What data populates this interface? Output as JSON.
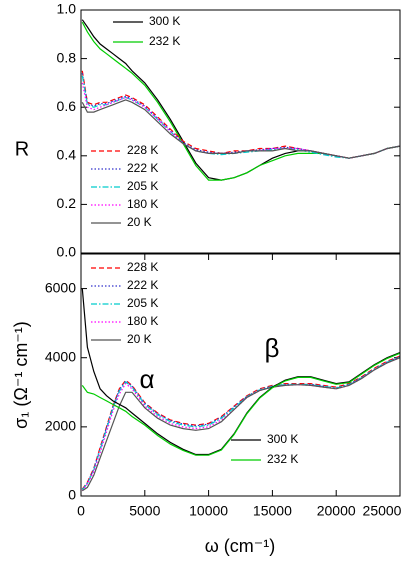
{
  "chart_data": [
    {
      "type": "line",
      "ylabel": "R",
      "xlim": [
        0,
        25000
      ],
      "ylim": [
        0,
        1
      ],
      "yticks": [
        {
          "value": 0,
          "label": "0.0"
        },
        0.2,
        0.4,
        0.6,
        0.8,
        {
          "value": 1,
          "label": "1.0"
        }
      ],
      "x": [
        100,
        500,
        1000,
        1500,
        2000,
        2500,
        3000,
        3500,
        4000,
        5000,
        6000,
        7000,
        8000,
        9000,
        10000,
        11000,
        12000,
        13000,
        14000,
        15000,
        16000,
        17000,
        18000,
        19000,
        20000,
        21000,
        22000,
        23000,
        24000,
        25000
      ],
      "series": [
        {
          "name": "300 K",
          "color": "#000000",
          "dash": "solid",
          "legend": "upper center",
          "values": [
            0.96,
            0.93,
            0.89,
            0.86,
            0.84,
            0.82,
            0.8,
            0.78,
            0.75,
            0.7,
            0.63,
            0.55,
            0.46,
            0.37,
            0.31,
            0.3,
            0.31,
            0.33,
            0.36,
            0.39,
            0.41,
            0.42,
            0.42,
            0.41,
            0.4,
            0.39,
            0.4,
            0.41,
            0.43,
            0.44
          ]
        },
        {
          "name": "232 K",
          "color": "#00cc00",
          "dash": "solid",
          "legend": "upper center",
          "values": [
            0.95,
            0.91,
            0.87,
            0.84,
            0.82,
            0.8,
            0.78,
            0.76,
            0.74,
            0.69,
            0.62,
            0.54,
            0.45,
            0.36,
            0.3,
            0.3,
            0.31,
            0.33,
            0.36,
            0.38,
            0.4,
            0.41,
            0.41,
            0.41,
            0.4,
            0.39,
            0.4,
            0.41,
            0.43,
            0.44
          ]
        },
        {
          "name": "228 K",
          "color": "#ff0000",
          "dash": "dashed",
          "legend": "lower left",
          "values": [
            0.75,
            0.62,
            0.61,
            0.62,
            0.62,
            0.63,
            0.64,
            0.65,
            0.64,
            0.61,
            0.56,
            0.51,
            0.46,
            0.43,
            0.42,
            0.41,
            0.42,
            0.42,
            0.43,
            0.43,
            0.44,
            0.43,
            0.42,
            0.41,
            0.4,
            0.39,
            0.4,
            0.41,
            0.43,
            0.44
          ]
        },
        {
          "name": "222 K",
          "color": "#3333cc",
          "dash": "dotted",
          "legend": "lower left",
          "values": [
            0.74,
            0.615,
            0.605,
            0.615,
            0.615,
            0.625,
            0.635,
            0.645,
            0.635,
            0.605,
            0.555,
            0.505,
            0.455,
            0.425,
            0.415,
            0.41,
            0.415,
            0.42,
            0.425,
            0.43,
            0.435,
            0.43,
            0.42,
            0.41,
            0.4,
            0.39,
            0.4,
            0.41,
            0.43,
            0.44
          ]
        },
        {
          "name": "205 K",
          "color": "#00cccc",
          "dash": "dashdot",
          "legend": "lower left",
          "values": [
            0.73,
            0.61,
            0.6,
            0.61,
            0.61,
            0.62,
            0.63,
            0.64,
            0.63,
            0.6,
            0.55,
            0.5,
            0.45,
            0.42,
            0.41,
            0.405,
            0.41,
            0.415,
            0.42,
            0.425,
            0.43,
            0.425,
            0.415,
            0.405,
            0.395,
            0.39,
            0.4,
            0.41,
            0.43,
            0.44
          ]
        },
        {
          "name": "180 K",
          "color": "#ff00ff",
          "dash": "dotted",
          "legend": "lower left",
          "values": [
            0.7,
            0.6,
            0.59,
            0.6,
            0.61,
            0.62,
            0.63,
            0.64,
            0.63,
            0.6,
            0.55,
            0.5,
            0.45,
            0.42,
            0.41,
            0.41,
            0.41,
            0.42,
            0.42,
            0.43,
            0.43,
            0.43,
            0.42,
            0.41,
            0.4,
            0.39,
            0.4,
            0.41,
            0.43,
            0.44
          ]
        },
        {
          "name": "20 K",
          "color": "#555555",
          "dash": "solid",
          "legend": "lower left",
          "values": [
            0.62,
            0.58,
            0.58,
            0.59,
            0.6,
            0.61,
            0.62,
            0.63,
            0.62,
            0.59,
            0.54,
            0.49,
            0.45,
            0.42,
            0.41,
            0.41,
            0.41,
            0.42,
            0.42,
            0.42,
            0.43,
            0.42,
            0.42,
            0.41,
            0.4,
            0.39,
            0.4,
            0.41,
            0.43,
            0.44
          ]
        }
      ]
    },
    {
      "type": "line",
      "xlabel": "ω (cm⁻¹)",
      "ylabel": "σ₁ (Ω⁻¹ cm⁻¹)",
      "annotations": [
        "α",
        "β"
      ],
      "xlim": [
        0,
        25000
      ],
      "ylim": [
        0,
        7000
      ],
      "xticks": [
        0,
        5000,
        10000,
        15000,
        20000,
        25000
      ],
      "yticks": [
        0,
        2000,
        4000,
        6000
      ],
      "x": [
        100,
        500,
        1000,
        1500,
        2000,
        2500,
        3000,
        3500,
        4000,
        5000,
        6000,
        7000,
        8000,
        9000,
        10000,
        11000,
        12000,
        13000,
        14000,
        15000,
        16000,
        17000,
        18000,
        19000,
        20000,
        21000,
        22000,
        23000,
        24000,
        25000
      ],
      "series": [
        {
          "name": "228 K",
          "color": "#ff0000",
          "dash": "dashed",
          "legend": "upper left",
          "values": [
            200,
            400,
            800,
            1400,
            2000,
            2600,
            3100,
            3350,
            3200,
            2700,
            2400,
            2200,
            2100,
            2050,
            2100,
            2300,
            2600,
            2900,
            3100,
            3200,
            3250,
            3250,
            3250,
            3200,
            3150,
            3250,
            3450,
            3700,
            3900,
            4050
          ]
        },
        {
          "name": "222 K",
          "color": "#3333cc",
          "dash": "dotted",
          "legend": "upper left",
          "values": [
            190,
            380,
            780,
            1380,
            1980,
            2580,
            3080,
            3330,
            3180,
            2680,
            2380,
            2180,
            2080,
            2030,
            2080,
            2280,
            2580,
            2880,
            3080,
            3180,
            3230,
            3230,
            3230,
            3180,
            3130,
            3230,
            3430,
            3680,
            3880,
            4030
          ]
        },
        {
          "name": "205 K",
          "color": "#00cccc",
          "dash": "dashdot",
          "legend": "upper left",
          "values": [
            180,
            360,
            750,
            1330,
            1930,
            2530,
            3030,
            3300,
            3150,
            2650,
            2350,
            2150,
            2050,
            2000,
            2050,
            2250,
            2550,
            2870,
            3070,
            3170,
            3220,
            3230,
            3220,
            3170,
            3120,
            3220,
            3420,
            3670,
            3870,
            4020
          ]
        },
        {
          "name": "180 K",
          "color": "#ff00ff",
          "dash": "dotted",
          "legend": "upper left",
          "values": [
            150,
            350,
            700,
            1250,
            1850,
            2450,
            2950,
            3250,
            3100,
            2600,
            2300,
            2100,
            2000,
            1950,
            2000,
            2200,
            2500,
            2850,
            3050,
            3150,
            3200,
            3220,
            3200,
            3150,
            3100,
            3200,
            3400,
            3650,
            3850,
            4000
          ]
        },
        {
          "name": "20 K",
          "color": "#555555",
          "dash": "solid",
          "legend": "upper left",
          "values": [
            150,
            250,
            600,
            1100,
            1600,
            2100,
            2600,
            3000,
            3000,
            2550,
            2250,
            2050,
            1950,
            1900,
            1950,
            2150,
            2500,
            2850,
            3050,
            3150,
            3200,
            3220,
            3200,
            3150,
            3100,
            3200,
            3400,
            3650,
            3850,
            4000
          ]
        },
        {
          "name": "300 K",
          "color": "#000000",
          "dash": "solid",
          "legend": "lower right",
          "values": [
            6000,
            4300,
            3600,
            3100,
            2900,
            2750,
            2650,
            2550,
            2400,
            2100,
            1800,
            1550,
            1350,
            1200,
            1200,
            1350,
            1800,
            2400,
            2850,
            3150,
            3350,
            3450,
            3450,
            3350,
            3250,
            3300,
            3550,
            3800,
            4000,
            4150
          ]
        },
        {
          "name": "232 K",
          "color": "#00cc00",
          "dash": "solid",
          "legend": "lower right",
          "values": [
            3200,
            3000,
            2950,
            2850,
            2750,
            2650,
            2550,
            2450,
            2300,
            2050,
            1750,
            1500,
            1320,
            1180,
            1180,
            1330,
            1780,
            2380,
            2830,
            3130,
            3330,
            3430,
            3430,
            3330,
            3230,
            3280,
            3530,
            3780,
            3980,
            4130
          ]
        }
      ]
    }
  ]
}
